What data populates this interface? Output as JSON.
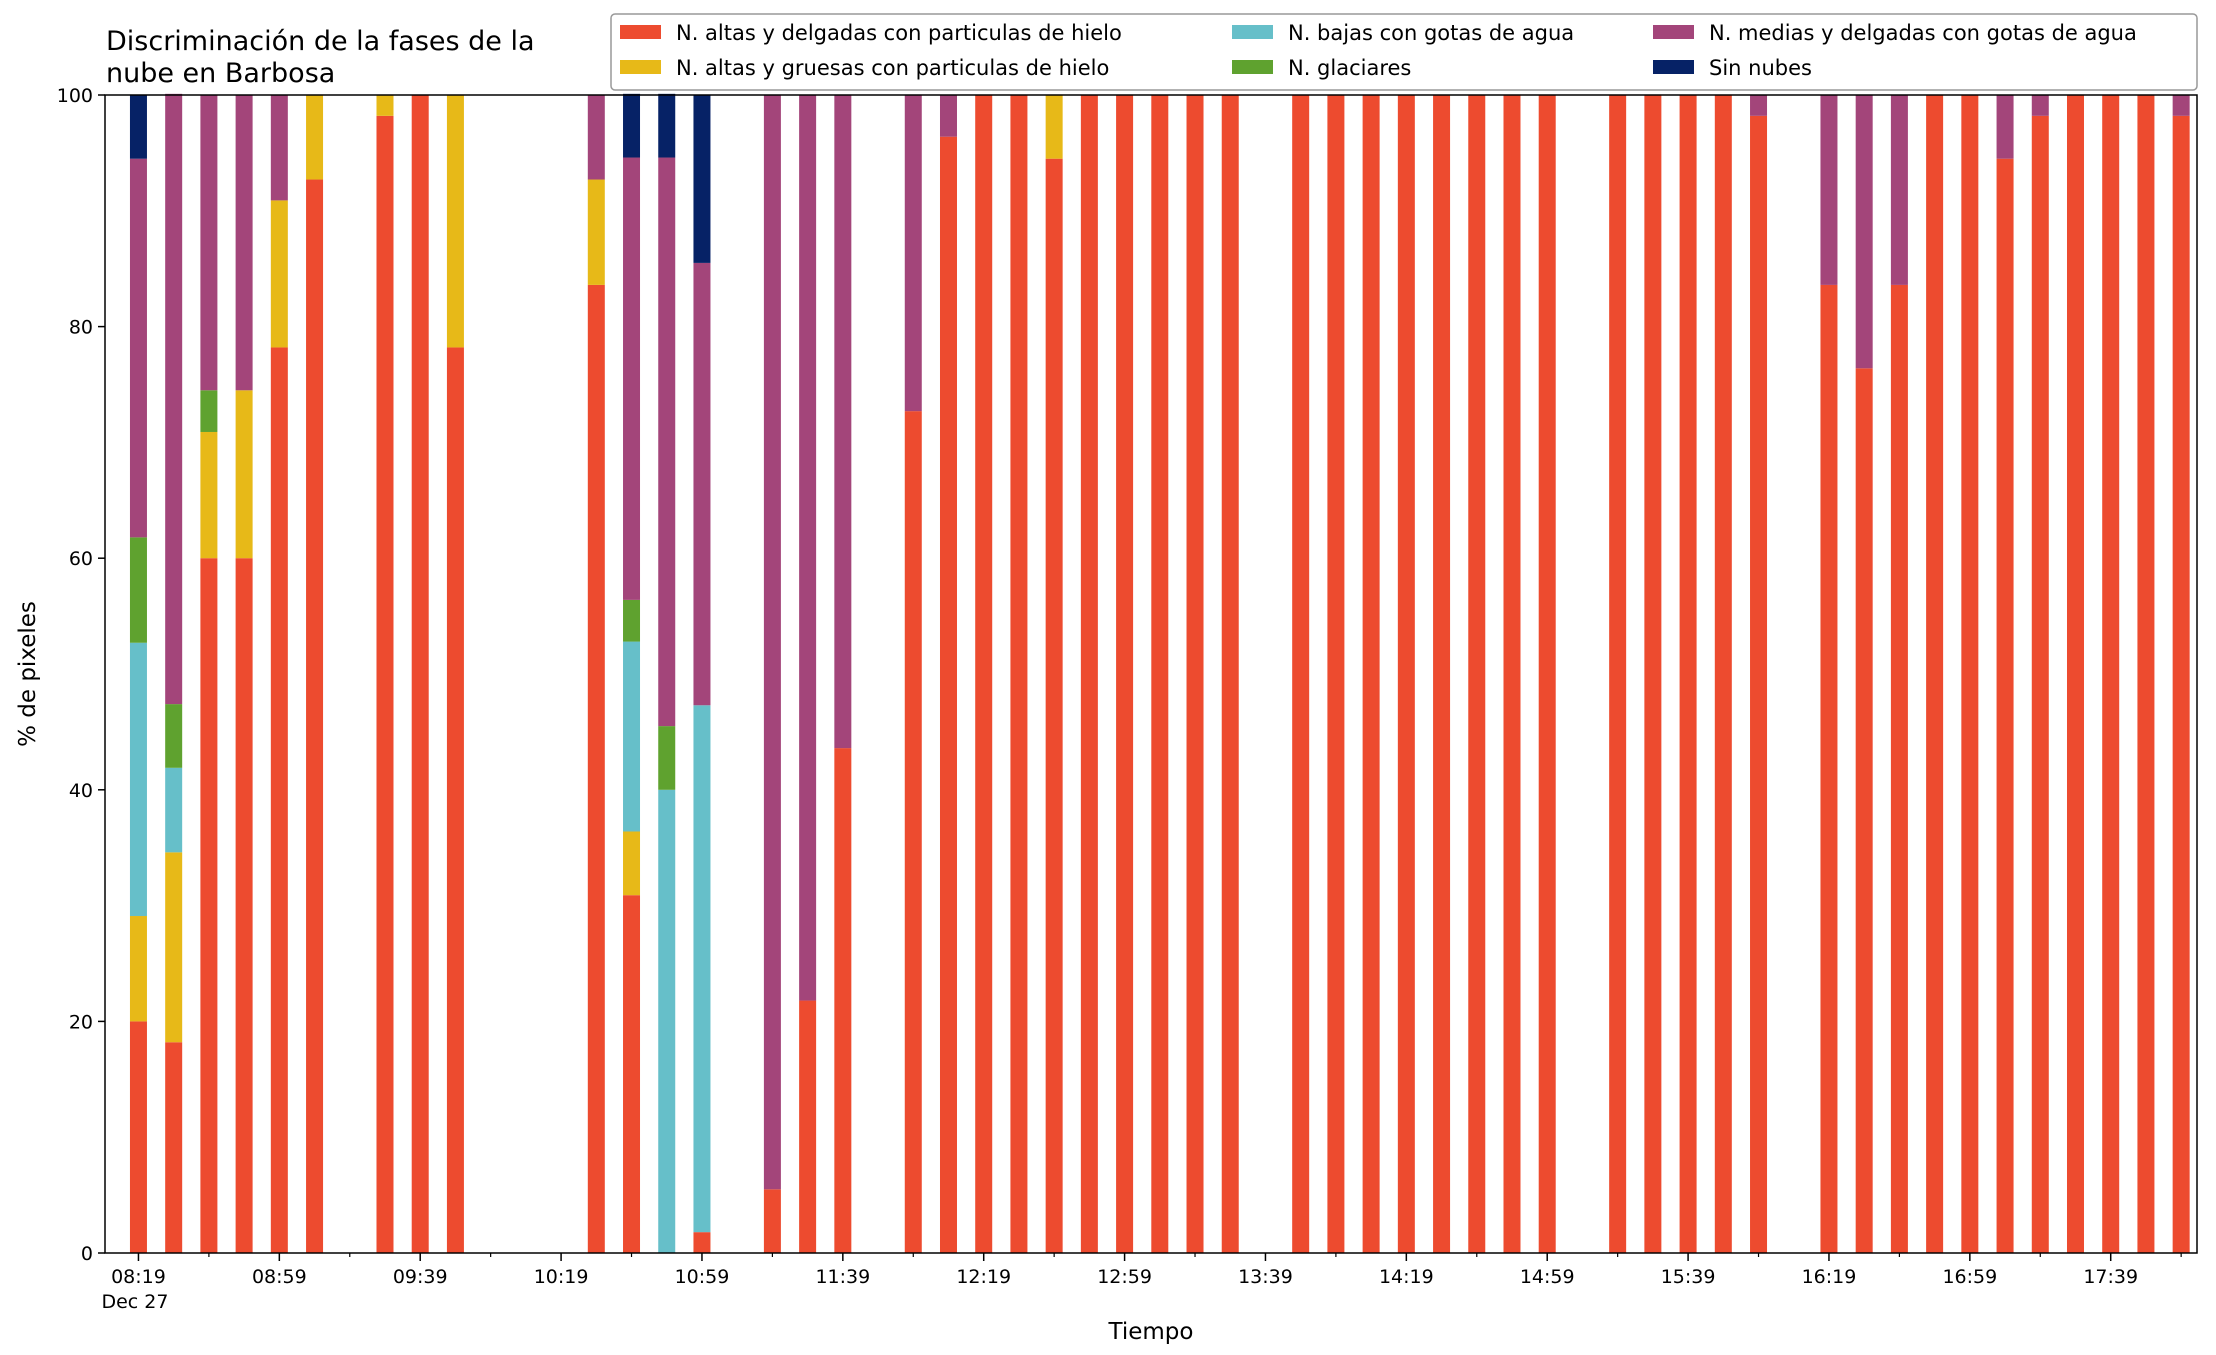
{
  "chart_data": {
    "type": "bar",
    "stacked": true,
    "title": "Discriminación de la fases de la\nnube en Barbosa",
    "xlabel": "Tiempo",
    "ylabel": "% de pixeles",
    "ylim": [
      0,
      100
    ],
    "yticks": [
      0,
      20,
      40,
      60,
      80,
      100
    ],
    "x_start_minutes": 499,
    "x_end_minutes": 1074,
    "bar_step_minutes": 10,
    "xtick_minutes": [
      499,
      539,
      579,
      619,
      659,
      699,
      739,
      779,
      819,
      859,
      899,
      939,
      979,
      1019,
      1059
    ],
    "xtick_labels": [
      "08:19",
      "08:59",
      "09:39",
      "10:19",
      "10:59",
      "11:39",
      "12:19",
      "12:59",
      "13:39",
      "14:19",
      "14:59",
      "15:39",
      "16:19",
      "16:59",
      "17:39"
    ],
    "date_label": "Dec 27",
    "legend_position": "top",
    "series": [
      {
        "name": "N. altas y delgadas con particulas de hielo",
        "color": "#ed4b2f",
        "values": [
          20,
          18.2,
          60,
          60,
          78.2,
          92.7,
          0,
          98.2,
          100,
          78.2,
          0,
          0,
          0,
          83.6,
          30.9,
          0,
          1.8,
          0,
          5.5,
          21.8,
          43.6,
          0,
          72.7,
          96.4,
          100,
          100,
          94.5,
          100,
          100,
          100,
          100,
          100,
          0,
          100,
          100,
          100,
          100,
          100,
          100,
          100,
          100,
          0,
          100,
          100,
          100,
          100,
          98.2,
          0,
          83.6,
          76.4,
          83.6,
          100,
          100,
          94.5,
          98.2,
          100,
          100,
          100,
          98.2
        ]
      },
      {
        "name": "N. altas y gruesas con particulas de hielo",
        "color": "#e7b918",
        "values": [
          9.1,
          16.4,
          10.9,
          14.5,
          12.7,
          7.3,
          0,
          1.8,
          0,
          21.8,
          0,
          0,
          0,
          9.1,
          5.5,
          0,
          0,
          0,
          0,
          0,
          0,
          0,
          0,
          0,
          0,
          0,
          5.5,
          0,
          0,
          0,
          0,
          0,
          0,
          0,
          0,
          0,
          0,
          0,
          0,
          0,
          0,
          0,
          0,
          0,
          0,
          0,
          0,
          0,
          0,
          0,
          0,
          0,
          0,
          0,
          0,
          0,
          0,
          0,
          0
        ]
      },
      {
        "name": "N. bajas con gotas de agua",
        "color": "#66bfc9",
        "values": [
          23.6,
          7.3,
          0,
          0,
          0,
          0,
          0,
          0,
          0,
          0,
          0,
          0,
          0,
          0,
          16.4,
          40,
          45.5,
          0,
          0,
          0,
          0,
          0,
          0,
          0,
          0,
          0,
          0,
          0,
          0,
          0,
          0,
          0,
          0,
          0,
          0,
          0,
          0,
          0,
          0,
          0,
          0,
          0,
          0,
          0,
          0,
          0,
          0,
          0,
          0,
          0,
          0,
          0,
          0,
          0,
          0,
          0,
          0,
          0,
          0
        ]
      },
      {
        "name": "N. glaciares",
        "color": "#5fa22f",
        "values": [
          9.1,
          5.5,
          3.6,
          0,
          0,
          0,
          0,
          0,
          0,
          0,
          0,
          0,
          0,
          0,
          3.6,
          5.5,
          0,
          0,
          0,
          0,
          0,
          0,
          0,
          0,
          0,
          0,
          0,
          0,
          0,
          0,
          0,
          0,
          0,
          0,
          0,
          0,
          0,
          0,
          0,
          0,
          0,
          0,
          0,
          0,
          0,
          0,
          0,
          0,
          0,
          0,
          0,
          0,
          0,
          0,
          0,
          0,
          0,
          0,
          0
        ]
      },
      {
        "name": "N. medias y delgadas con gotas de agua",
        "color": "#a3457a",
        "values": [
          32.7,
          52.7,
          25.5,
          25.5,
          9.1,
          0,
          0,
          0,
          0,
          0,
          0,
          0,
          0,
          7.3,
          38.2,
          49.1,
          38.2,
          0,
          94.5,
          78.2,
          56.4,
          0,
          27.3,
          3.6,
          0,
          0,
          0,
          0,
          0,
          0,
          0,
          0,
          0,
          0,
          0,
          0,
          0,
          0,
          0,
          0,
          0,
          0,
          0,
          0,
          0,
          0,
          1.8,
          0,
          16.4,
          23.6,
          16.4,
          0,
          0,
          5.5,
          1.8,
          0,
          0,
          0,
          1.8
        ]
      },
      {
        "name": "Sin nubes",
        "color": "#062266",
        "values": [
          5.5,
          0,
          0,
          0,
          0,
          0,
          0,
          0,
          0,
          0,
          0,
          0,
          0,
          0,
          5.5,
          5.5,
          14.5,
          0,
          0,
          0,
          0,
          0,
          0,
          0,
          0,
          0,
          0,
          0,
          0,
          0,
          0,
          0,
          0,
          0,
          0,
          0,
          0,
          0,
          0,
          0,
          0,
          0,
          0,
          0,
          0,
          0,
          0,
          0,
          0,
          0,
          0,
          0,
          0,
          0,
          0,
          0,
          0,
          0,
          0
        ]
      }
    ]
  }
}
